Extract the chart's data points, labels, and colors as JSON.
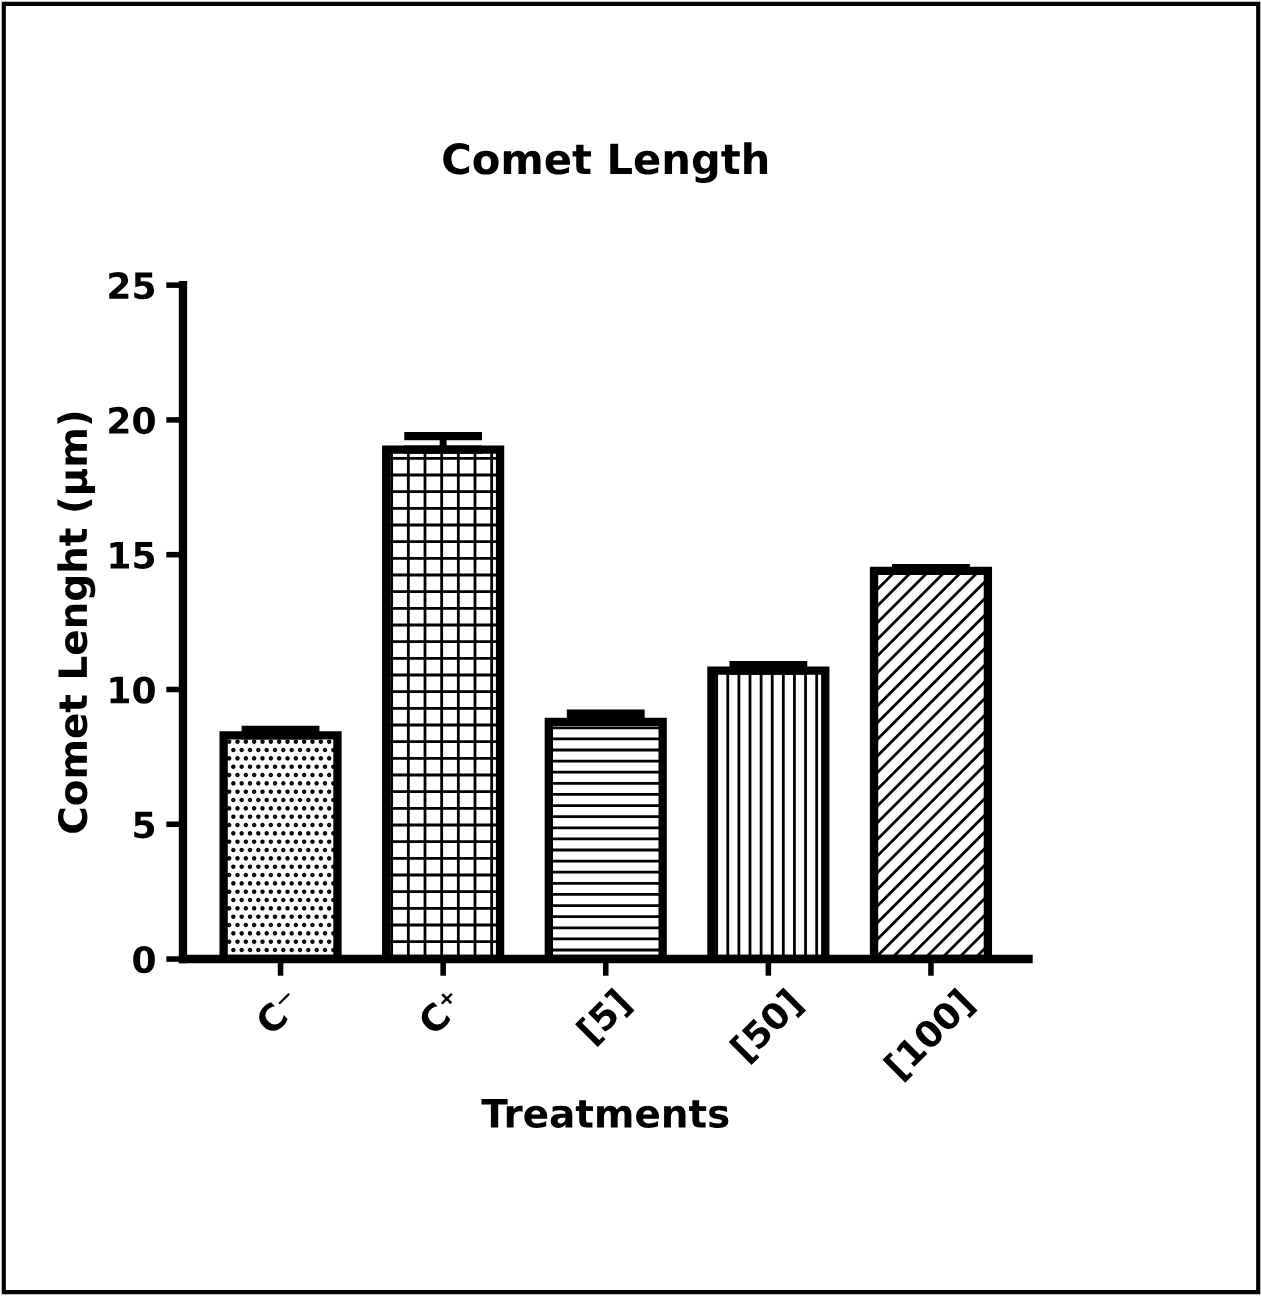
{
  "chart_data": {
    "type": "bar",
    "title": "Comet Length",
    "xlabel": "Treatments",
    "ylabel": "Comet Lenght (µm)",
    "categories": [
      "C⁻",
      "C⁺",
      "[5]",
      "[50]",
      "[100]"
    ],
    "values": [
      8.3,
      18.9,
      8.8,
      10.7,
      14.4
    ],
    "errors": [
      0.2,
      0.5,
      0.3,
      0.2,
      0.1
    ],
    "color": "#000000",
    "ylim": [
      0,
      25
    ],
    "yticks": [
      0,
      5,
      10,
      15,
      20,
      25
    ],
    "grid": false,
    "legend": false
  }
}
